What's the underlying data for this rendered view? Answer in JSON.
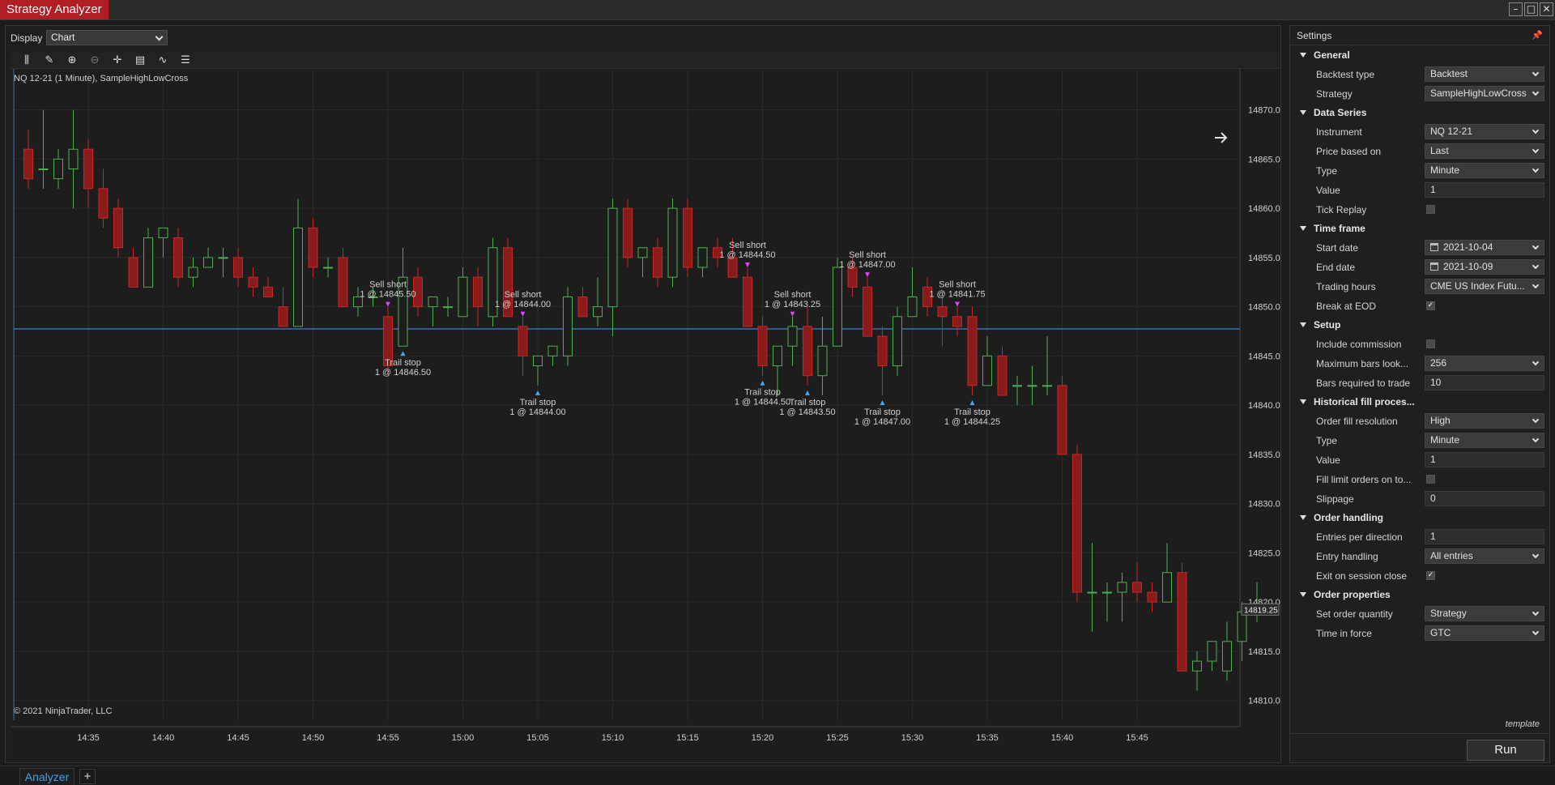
{
  "window": {
    "title": "Strategy Analyzer"
  },
  "display": {
    "label": "Display",
    "value": "Chart"
  },
  "chart": {
    "series_label": "NQ 12-21 (1 Minute), SampleHighLowCross",
    "copyright": "© 2021 NinjaTrader, LLC",
    "current_price_label": "14819.25",
    "hline_price": 14847.75,
    "colors": {
      "up": "#4caf50",
      "down": "#c62828",
      "hline": "#3d6fb0",
      "grid": "#2a2a2a",
      "entry_marker": "#e040fb",
      "exit_marker": "#42a5f5"
    }
  },
  "chart_data": {
    "type": "candlestick",
    "x_ticks": [
      "14:35",
      "14:40",
      "14:45",
      "14:50",
      "14:55",
      "15:00",
      "15:05",
      "15:10",
      "15:15",
      "15:20",
      "15:25",
      "15:30",
      "15:35",
      "15:40",
      "15:45"
    ],
    "y_ticks": [
      "14870.00",
      "14865.00",
      "14860.00",
      "14855.00",
      "14850.00",
      "14845.00",
      "14840.00",
      "14835.00",
      "14830.00",
      "14825.00",
      "14820.00",
      "14815.00",
      "14810.00"
    ],
    "ylim": [
      14808,
      14874
    ],
    "first_bar_time": "14:31",
    "ohlc": [
      [
        14866,
        14868,
        14862,
        14863
      ],
      [
        14864,
        14870,
        14862,
        14864
      ],
      [
        14863,
        14866,
        14862,
        14865
      ],
      [
        14864,
        14870,
        14860,
        14866
      ],
      [
        14866,
        14867,
        14860,
        14862
      ],
      [
        14862,
        14864,
        14858,
        14859
      ],
      [
        14860,
        14861,
        14855,
        14856
      ],
      [
        14855,
        14856,
        14852,
        14852
      ],
      [
        14852,
        14858,
        14852,
        14857
      ],
      [
        14857,
        14858,
        14855,
        14858
      ],
      [
        14857,
        14858,
        14852,
        14853
      ],
      [
        14853,
        14855,
        14852,
        14854
      ],
      [
        14854,
        14856,
        14854,
        14855
      ],
      [
        14855,
        14856,
        14853,
        14855
      ],
      [
        14855,
        14856,
        14852,
        14853
      ],
      [
        14853,
        14854,
        14851,
        14852
      ],
      [
        14852,
        14853,
        14851,
        14851
      ],
      [
        14850,
        14852,
        14848,
        14848
      ],
      [
        14848,
        14861,
        14848,
        14858
      ],
      [
        14858,
        14859,
        14853,
        14854
      ],
      [
        14854,
        14855,
        14853,
        14854
      ],
      [
        14855,
        14856,
        14850,
        14850
      ],
      [
        14850,
        14852,
        14849,
        14851
      ],
      [
        14851,
        14852,
        14850,
        14851
      ],
      [
        14849,
        14850,
        14843,
        14844
      ],
      [
        14846,
        14856,
        14846,
        14853
      ],
      [
        14853,
        14854,
        14849,
        14850
      ],
      [
        14850,
        14851,
        14848,
        14851
      ],
      [
        14850,
        14851,
        14849,
        14850
      ],
      [
        14849,
        14854,
        14849,
        14853
      ],
      [
        14853,
        14854,
        14848,
        14850
      ],
      [
        14849,
        14857,
        14848,
        14856
      ],
      [
        14856,
        14857,
        14849,
        14849
      ],
      [
        14848,
        14849,
        14843,
        14845
      ],
      [
        14844,
        14845,
        14842,
        14845
      ],
      [
        14845,
        14846,
        14844,
        14846
      ],
      [
        14845,
        14852,
        14844,
        14851
      ],
      [
        14851,
        14852,
        14849,
        14849
      ],
      [
        14849,
        14853,
        14848,
        14850
      ],
      [
        14850,
        14861,
        14847,
        14860
      ],
      [
        14860,
        14861,
        14854,
        14855
      ],
      [
        14855,
        14856,
        14853,
        14856
      ],
      [
        14856,
        14857,
        14852,
        14853
      ],
      [
        14853,
        14861,
        14852,
        14860
      ],
      [
        14860,
        14861,
        14853,
        14854
      ],
      [
        14854,
        14856,
        14853,
        14856
      ],
      [
        14856,
        14857,
        14854,
        14855
      ],
      [
        14855,
        14857,
        14853,
        14853
      ],
      [
        14853,
        14854,
        14848,
        14848
      ],
      [
        14848,
        14849,
        14843,
        14844
      ],
      [
        14844,
        14846,
        14841,
        14846
      ],
      [
        14846,
        14849,
        14844,
        14848
      ],
      [
        14848,
        14850,
        14842,
        14843
      ],
      [
        14843,
        14849,
        14841,
        14846
      ],
      [
        14846,
        14855,
        14846,
        14854
      ],
      [
        14854,
        14855,
        14851,
        14852
      ],
      [
        14852,
        14853,
        14847,
        14847
      ],
      [
        14847,
        14848,
        14841,
        14844
      ],
      [
        14844,
        14850,
        14843,
        14849
      ],
      [
        14849,
        14854,
        14849,
        14851
      ],
      [
        14852,
        14853,
        14849,
        14850
      ],
      [
        14850,
        14851,
        14846,
        14849
      ],
      [
        14849,
        14850,
        14847,
        14848
      ],
      [
        14849,
        14850,
        14841,
        14842
      ],
      [
        14842,
        14847,
        14842,
        14845
      ],
      [
        14845,
        14846,
        14841,
        14841
      ],
      [
        14842,
        14843,
        14840,
        14842
      ],
      [
        14842,
        14844,
        14840,
        14842
      ],
      [
        14842,
        14847,
        14841,
        14842
      ],
      [
        14842,
        14843,
        14835,
        14835
      ],
      [
        14835,
        14836,
        14820,
        14821
      ],
      [
        14821,
        14826,
        14817,
        14821
      ],
      [
        14821,
        14822,
        14818,
        14821
      ],
      [
        14821,
        14823,
        14818,
        14822
      ],
      [
        14822,
        14824,
        14820,
        14821
      ],
      [
        14821,
        14822,
        14819,
        14820
      ],
      [
        14820,
        14826,
        14820,
        14823
      ],
      [
        14823,
        14824,
        14813,
        14813
      ],
      [
        14813,
        14815,
        14811,
        14814
      ],
      [
        14814,
        14816,
        14813,
        14816
      ],
      [
        14813,
        14818,
        14812,
        14816
      ],
      [
        14816,
        14820,
        14814,
        14819
      ],
      [
        14819,
        14822,
        14818,
        14819
      ]
    ],
    "trades": [
      {
        "entry": {
          "label": "Sell short",
          "detail": "1 @ 14845.50",
          "bar": 24
        },
        "exit": {
          "label": "Trail stop",
          "detail": "1 @ 14846.50",
          "bar": 25
        }
      },
      {
        "entry": {
          "label": "Sell short",
          "detail": "1 @ 14844.00",
          "bar": 33
        },
        "exit": {
          "label": "Trail stop",
          "detail": "1 @ 14844.00",
          "bar": 34
        }
      },
      {
        "entry": {
          "label": "Sell short",
          "detail": "1 @ 14844.50",
          "bar": 48
        },
        "exit": {
          "label": "Trail stop",
          "detail": "1 @ 14844.50",
          "bar": 49
        }
      },
      {
        "entry": {
          "label": "Sell short",
          "detail": "1 @ 14843.25",
          "bar": 51
        },
        "exit": {
          "label": "Trail stop",
          "detail": "1 @ 14843.50",
          "bar": 52
        }
      },
      {
        "entry": {
          "label": "Sell short",
          "detail": "1 @ 14847.00",
          "bar": 56
        },
        "exit": {
          "label": "Trail stop",
          "detail": "1 @ 14847.00",
          "bar": 57
        }
      },
      {
        "entry": {
          "label": "Sell short",
          "detail": "1 @ 14841.75",
          "bar": 62
        },
        "exit": {
          "label": "Trail stop",
          "detail": "1 @ 14844.25",
          "bar": 63
        }
      }
    ]
  },
  "settings": {
    "title": "Settings",
    "template_label": "template",
    "run_label": "Run",
    "sections": [
      {
        "name": "General",
        "rows": [
          {
            "label": "Backtest type",
            "value": "Backtest",
            "kind": "select"
          },
          {
            "label": "Strategy",
            "value": "SampleHighLowCross",
            "kind": "select"
          }
        ]
      },
      {
        "name": "Data Series",
        "rows": [
          {
            "label": "Instrument",
            "value": "NQ 12-21",
            "kind": "select"
          },
          {
            "label": "Price based on",
            "value": "Last",
            "kind": "select"
          },
          {
            "label": "Type",
            "value": "Minute",
            "kind": "select"
          },
          {
            "label": "Value",
            "value": "1",
            "kind": "text"
          },
          {
            "label": "Tick Replay",
            "value": "",
            "kind": "check",
            "checked": false
          }
        ]
      },
      {
        "name": "Time frame",
        "rows": [
          {
            "label": "Start date",
            "value": "2021-10-04",
            "kind": "date"
          },
          {
            "label": "End date",
            "value": "2021-10-09",
            "kind": "date"
          },
          {
            "label": "Trading hours",
            "value": "CME US Index Futu...",
            "kind": "select"
          },
          {
            "label": "Break at EOD",
            "value": "",
            "kind": "check",
            "checked": true
          }
        ]
      },
      {
        "name": "Setup",
        "rows": [
          {
            "label": "Include commission",
            "value": "",
            "kind": "check",
            "checked": false
          },
          {
            "label": "Maximum bars look...",
            "value": "256",
            "kind": "select"
          },
          {
            "label": "Bars required to trade",
            "value": "10",
            "kind": "text"
          }
        ]
      },
      {
        "name": "Historical fill proces...",
        "rows": [
          {
            "label": "Order fill resolution",
            "value": "High",
            "kind": "select"
          },
          {
            "label": "Type",
            "value": "Minute",
            "kind": "select"
          },
          {
            "label": "Value",
            "value": "1",
            "kind": "text"
          },
          {
            "label": "Fill limit orders on to...",
            "value": "",
            "kind": "check",
            "checked": false
          },
          {
            "label": "Slippage",
            "value": "0",
            "kind": "text"
          }
        ]
      },
      {
        "name": "Order handling",
        "rows": [
          {
            "label": "Entries per direction",
            "value": "1",
            "kind": "text"
          },
          {
            "label": "Entry handling",
            "value": "All entries",
            "kind": "select"
          },
          {
            "label": "Exit on session close",
            "value": "",
            "kind": "check",
            "checked": true
          }
        ]
      },
      {
        "name": "Order properties",
        "rows": [
          {
            "label": "Set order quantity",
            "value": "Strategy",
            "kind": "select"
          },
          {
            "label": "Time in force",
            "value": "GTC",
            "kind": "select"
          }
        ]
      }
    ]
  },
  "tabs": {
    "analyzer": "Analyzer",
    "add": "+"
  }
}
